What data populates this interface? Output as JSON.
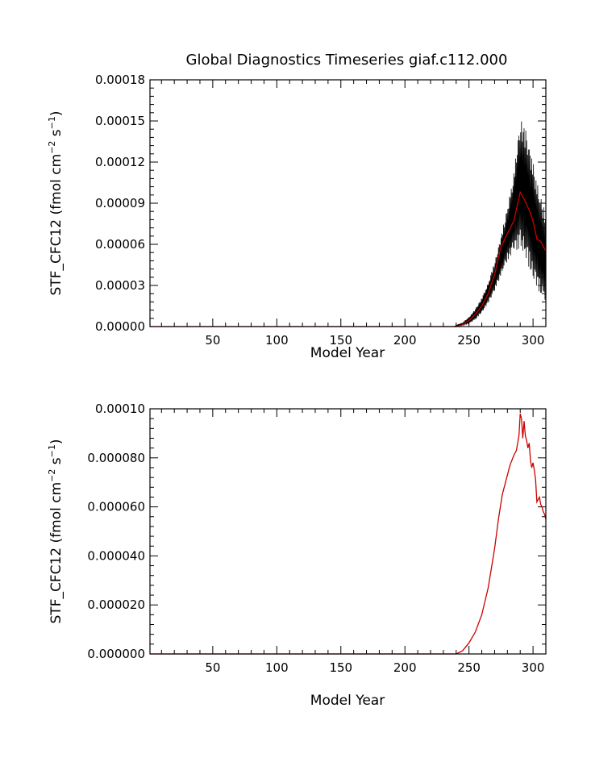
{
  "title": "Global Diagnostics Timeseries giaf.c112.000",
  "chart_data": [
    {
      "type": "line",
      "xlabel": "Model Year",
      "ylabel_main": "STF_CFC12 (fmol cm",
      "ylabel_exp1": "−2",
      "ylabel_mid": " s",
      "ylabel_exp2": "−1",
      "ylabel_end": ")",
      "xlim": [
        1,
        310
      ],
      "ylim": [
        0,
        0.00018
      ],
      "xticks": [
        50,
        100,
        150,
        200,
        250,
        300
      ],
      "xtick_labels": [
        "50",
        "100",
        "150",
        "200",
        "250",
        "300"
      ],
      "yticks": [
        0,
        3e-05,
        6e-05,
        9e-05,
        0.00012,
        0.00015,
        0.00018
      ],
      "ytick_labels": [
        "0.00000",
        "0.00003",
        "0.00006",
        "0.00009",
        "0.00012",
        "0.00015",
        "0.00018"
      ],
      "series": [
        {
          "color": "#000000",
          "style": "monthly-envelope",
          "x": [
            1,
            238,
            245,
            250,
            255,
            260,
            265,
            270,
            275,
            280,
            285,
            290,
            295,
            300,
            305,
            310
          ],
          "lower": [
            0,
            0,
            5e-07,
            2e-06,
            5e-06,
            1e-05,
            1.7e-05,
            2.6e-05,
            3.7e-05,
            4.8e-05,
            5.5e-05,
            5.7e-05,
            4.8e-05,
            3.4e-05,
            2.5e-05,
            1.8e-05
          ],
          "upper": [
            0,
            0,
            3e-06,
            7e-06,
            1.3e-05,
            2.1e-05,
            3.2e-05,
            4.7e-05,
            6.6e-05,
            8.7e-05,
            0.000112,
            0.000152,
            0.000142,
            0.00012,
            9.7e-05,
            8.2e-05
          ]
        },
        {
          "color": "#cc0000",
          "style": "annual-mean",
          "x": [
            1,
            240,
            245,
            250,
            255,
            260,
            265,
            270,
            275,
            280,
            285,
            290,
            293,
            297,
            300,
            303,
            306,
            310
          ],
          "y": [
            0,
            0,
            1.3e-06,
            4.5e-06,
            9e-06,
            1.5e-05,
            2.4e-05,
            3.8e-05,
            5.8e-05,
            6.8e-05,
            7.7e-05,
            9.8e-05,
            9.3e-05,
            8.5e-05,
            7.7e-05,
            6.4e-05,
            6.2e-05,
            5.5e-05
          ]
        }
      ]
    },
    {
      "type": "line",
      "xlabel": "Model Year",
      "ylabel_main": "STF_CFC12 (fmol cm",
      "ylabel_exp1": "−2",
      "ylabel_mid": " s",
      "ylabel_exp2": "−1",
      "ylabel_end": ")",
      "xlim": [
        1,
        310
      ],
      "ylim": [
        0,
        0.0001
      ],
      "xticks": [
        50,
        100,
        150,
        200,
        250,
        300
      ],
      "xtick_labels": [
        "50",
        "100",
        "150",
        "200",
        "250",
        "300"
      ],
      "yticks": [
        0,
        2e-05,
        4e-05,
        6e-05,
        8e-05,
        0.0001
      ],
      "ytick_labels": [
        "0.000000",
        "0.000020",
        "0.000040",
        "0.000060",
        "0.000080",
        "0.00010"
      ],
      "series": [
        {
          "color": "#cc0000",
          "style": "annual-mean",
          "x": [
            1,
            240,
            245,
            250,
            255,
            260,
            265,
            270,
            273,
            276,
            279,
            282,
            285,
            287,
            289,
            290,
            291,
            292,
            293,
            294,
            295,
            296,
            297,
            298,
            299,
            300,
            301,
            302,
            303,
            304,
            305,
            306,
            307,
            308,
            309,
            310
          ],
          "y": [
            0,
            0,
            1.3e-06,
            4.5e-06,
            9e-06,
            1.6e-05,
            2.7e-05,
            4.3e-05,
            5.5e-05,
            6.5e-05,
            7.1e-05,
            7.7e-05,
            8.1e-05,
            8.3e-05,
            8.9e-05,
            9.8e-05,
            9.6e-05,
            8.8e-05,
            9.5e-05,
            8.9e-05,
            8.7e-05,
            8.4e-05,
            8.6e-05,
            7.9e-05,
            7.6e-05,
            7.8e-05,
            7.5e-05,
            7.1e-05,
            6.2e-05,
            6.3e-05,
            6.4e-05,
            6.1e-05,
            6e-05,
            5.8e-05,
            5.7e-05,
            5.5e-05
          ]
        }
      ]
    }
  ]
}
